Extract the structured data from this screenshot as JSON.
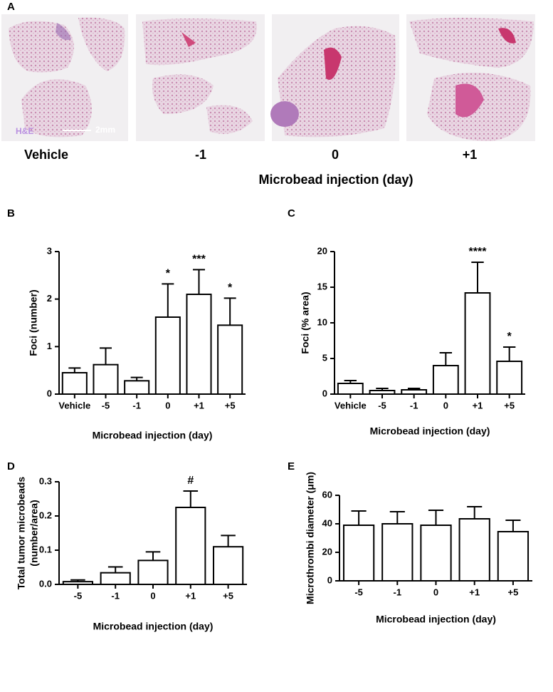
{
  "panel_a": {
    "panel_label": "A",
    "stain": "H&E",
    "scale": "2mm",
    "labels": [
      "Vehicle",
      "-1",
      "0",
      "+1"
    ],
    "xlabel": "Microbead injection (day)"
  },
  "chart_data": [
    {
      "type": "bar",
      "panel_label": "B",
      "ylabel": "Foci (number)",
      "xlabel": "Microbead injection (day)",
      "categories": [
        "Vehicle",
        "-5",
        "-1",
        "0",
        "+1",
        "+5"
      ],
      "values": [
        0.45,
        0.62,
        0.28,
        1.62,
        2.1,
        1.45
      ],
      "errors": [
        0.1,
        0.35,
        0.07,
        0.7,
        0.52,
        0.57
      ],
      "annotations": [
        null,
        null,
        null,
        "*",
        "***",
        "*"
      ],
      "ylim": [
        0,
        3
      ],
      "yticks": [
        0,
        1,
        2,
        3
      ],
      "color": "#ffffff"
    },
    {
      "type": "bar",
      "panel_label": "C",
      "ylabel": "Foci (% area)",
      "xlabel": "Microbead injection (day)",
      "categories": [
        "Vehicle",
        "-5",
        "-1",
        "0",
        "+1",
        "+5"
      ],
      "values": [
        1.5,
        0.5,
        0.6,
        4.0,
        14.2,
        4.6
      ],
      "errors": [
        0.4,
        0.3,
        0.2,
        1.8,
        4.3,
        2.0
      ],
      "annotations": [
        null,
        null,
        null,
        null,
        "****",
        "*"
      ],
      "ylim": [
        0,
        20
      ],
      "yticks": [
        0,
        5,
        10,
        15,
        20
      ],
      "color": "#ffffff"
    },
    {
      "type": "bar",
      "panel_label": "D",
      "ylabel": [
        "Total tumor microbeads",
        "(number/area)"
      ],
      "xlabel": "Microbead injection (day)",
      "categories": [
        "-5",
        "-1",
        "0",
        "+1",
        "+5"
      ],
      "values": [
        0.008,
        0.034,
        0.07,
        0.225,
        0.11
      ],
      "errors": [
        0.005,
        0.017,
        0.025,
        0.048,
        0.033
      ],
      "annotations": [
        null,
        null,
        null,
        "#",
        null
      ],
      "ylim": [
        0,
        0.3
      ],
      "yticks": [
        {
          "value": 0,
          "label": "0.0"
        },
        0.1,
        0.2,
        0.3
      ],
      "color": "#ffffff"
    },
    {
      "type": "bar",
      "panel_label": "E",
      "ylabel": "Microthrombi diameter (μm)",
      "xlabel": "Microbead injection (day)",
      "categories": [
        "-5",
        "-1",
        "0",
        "+1",
        "+5"
      ],
      "values": [
        39,
        40,
        39,
        43.5,
        34.5
      ],
      "errors": [
        10,
        8.5,
        10.5,
        8.5,
        8
      ],
      "annotations": [
        null,
        null,
        null,
        null,
        null
      ],
      "ylim": [
        0,
        60
      ],
      "yticks": [
        0,
        20,
        40,
        60
      ],
      "color": "#ffffff"
    }
  ]
}
